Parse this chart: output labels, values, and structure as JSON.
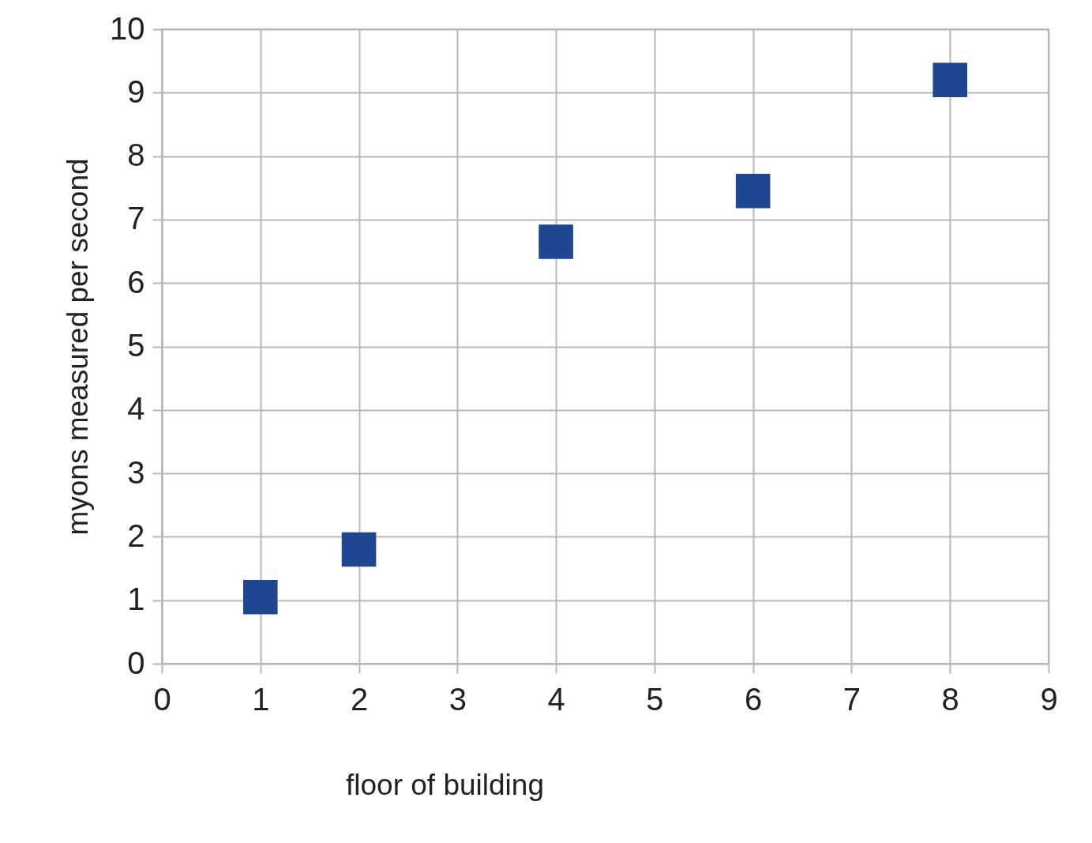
{
  "chart_data": {
    "type": "scatter",
    "xlabel": "floor of building",
    "ylabel": "myons measured per second",
    "x": [
      1,
      2,
      4,
      6,
      8
    ],
    "series": [
      {
        "color": "#1f4690",
        "values": [
          1.05,
          1.8,
          6.65,
          7.45,
          9.2
        ]
      }
    ],
    "xlim": [
      0,
      9
    ],
    "xticks": [
      0,
      1,
      2,
      3,
      4,
      5,
      6,
      7,
      8,
      9
    ],
    "ylim": [
      0,
      10
    ],
    "yticks": [
      0,
      1,
      2,
      3,
      4,
      5,
      6,
      7,
      8,
      9,
      10
    ],
    "grid": true,
    "marker": "square"
  }
}
